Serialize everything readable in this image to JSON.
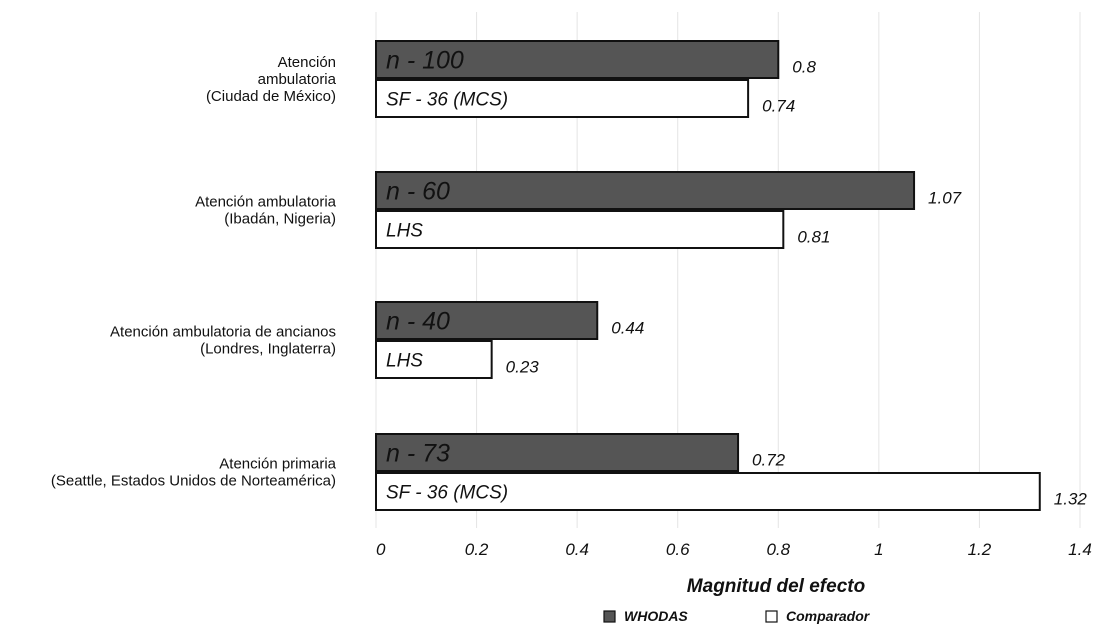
{
  "chart_data": {
    "type": "bar",
    "orientation": "horizontal",
    "title": "",
    "xlabel": "Magnitud del efecto",
    "ylabel": "",
    "xlim": [
      0,
      1.4
    ],
    "x_ticks": [
      "0",
      "0.2",
      "0.4",
      "0.6",
      "0.8",
      "1",
      "1.2",
      "1.4"
    ],
    "grid": true,
    "legend_position": "bottom",
    "categories": [
      {
        "lines": [
          "Atención",
          "ambulatoria",
          "(Ciudad de México)"
        ]
      },
      {
        "lines": [
          "Atención ambulatoria",
          "(Ibadán, Nigeria)"
        ]
      },
      {
        "lines": [
          "Atención ambulatoria de ancianos",
          "(Londres, Inglaterra)"
        ]
      },
      {
        "lines": [
          "Atención primaria",
          "(Seattle, Estados Unidos de Norteamérica)"
        ]
      }
    ],
    "series": [
      {
        "name": "WHODAS",
        "color": "#555555",
        "values": [
          0.8,
          1.07,
          0.44,
          0.72
        ],
        "value_labels": [
          "0.8",
          "1.07",
          "0.44",
          "0.72"
        ],
        "bar_labels": [
          "n - 100",
          "n - 60",
          "n - 40",
          "n - 73"
        ]
      },
      {
        "name": "Comparador",
        "color": "#ffffff",
        "values": [
          0.74,
          0.81,
          0.23,
          1.32
        ],
        "value_labels": [
          "0.74",
          "0.81",
          "0.23",
          "1.32"
        ],
        "bar_labels": [
          "SF - 36 (MCS)",
          "LHS",
          "LHS",
          "SF - 36 (MCS)"
        ]
      }
    ]
  }
}
